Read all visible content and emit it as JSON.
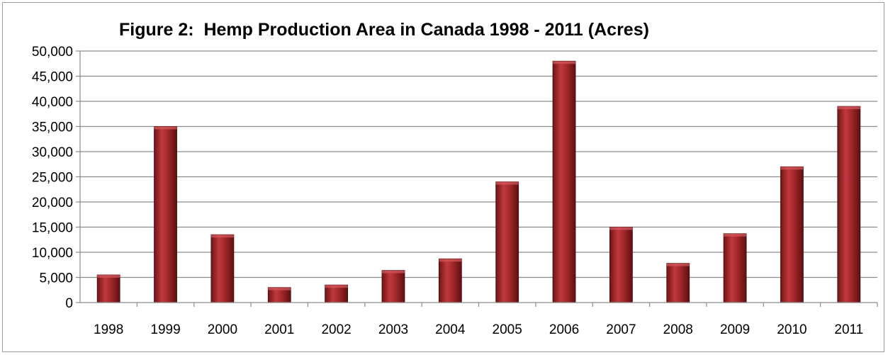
{
  "chart_data": {
    "type": "bar",
    "title": "Figure 2:  Hemp Production Area in Canada 1998 - 2011 (Acres)",
    "xlabel": "",
    "ylabel": "",
    "categories": [
      "1998",
      "1999",
      "2000",
      "2001",
      "2002",
      "2003",
      "2004",
      "2005",
      "2006",
      "2007",
      "2008",
      "2009",
      "2010",
      "2011"
    ],
    "values": [
      5500,
      35000,
      13500,
      3000,
      3500,
      6400,
      8700,
      24000,
      48000,
      15000,
      7800,
      13700,
      27000,
      39000
    ],
    "ylim": [
      0,
      50000
    ],
    "yticks": [
      0,
      5000,
      10000,
      15000,
      20000,
      25000,
      30000,
      35000,
      40000,
      45000,
      50000
    ],
    "ytick_labels": [
      "0",
      "5,000",
      "10,000",
      "15,000",
      "20,000",
      "25,000",
      "30,000",
      "35,000",
      "40,000",
      "45,000",
      "50,000"
    ],
    "grid": true,
    "legend": "none",
    "bar_color": "#a3282c"
  }
}
